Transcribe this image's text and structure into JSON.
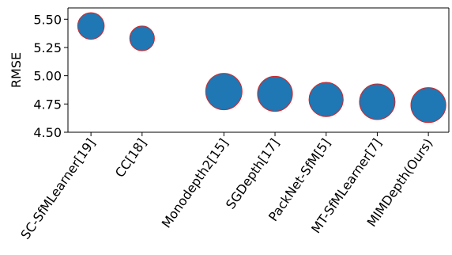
{
  "chart_data": {
    "type": "scatter",
    "title": "",
    "xlabel": "",
    "ylabel": "RMSE",
    "ylim": [
      4.5,
      5.6
    ],
    "yticks": [
      4.5,
      4.75,
      5.0,
      5.25,
      5.5
    ],
    "ytick_labels": [
      "4.50",
      "4.75",
      "5.00",
      "5.25",
      "5.50"
    ],
    "grid": false,
    "legend": "none",
    "marker_color": "#1f77b4",
    "marker_edge_color": "#d62728",
    "points": [
      {
        "label": "SC-SfMLearner[19]",
        "x": 0,
        "y": 5.44,
        "relative_size": 0.73
      },
      {
        "label": "CC[18]",
        "x": 1,
        "y": 5.33,
        "relative_size": 0.68
      },
      {
        "label": "Monodepth2[15]",
        "x": 2.6,
        "y": 4.86,
        "relative_size": 1.0
      },
      {
        "label": "SGDepth[17]",
        "x": 3.6,
        "y": 4.84,
        "relative_size": 0.96
      },
      {
        "label": "PackNet-SfM[5]",
        "x": 4.6,
        "y": 4.79,
        "relative_size": 0.94
      },
      {
        "label": "MT-SfMLearner[7]",
        "x": 5.6,
        "y": 4.77,
        "relative_size": 0.98
      },
      {
        "label": "MIMDepth(Ours)",
        "x": 6.6,
        "y": 4.74,
        "relative_size": 0.96
      }
    ]
  }
}
